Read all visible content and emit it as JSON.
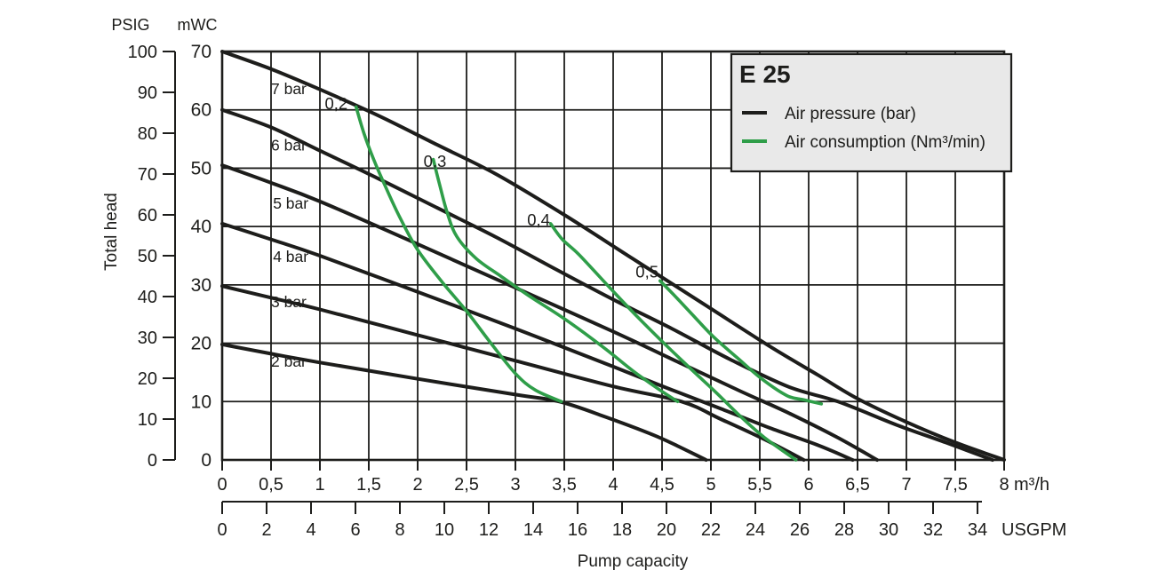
{
  "title": "E 25",
  "colors": {
    "pressure": "#1d1d1b",
    "consumption": "#2f9e49",
    "grid": "#1d1d1b",
    "legend_bg": "#e9e9e9",
    "background": "#ffffff"
  },
  "legend": {
    "title": "E 25",
    "items": [
      {
        "label": "Air pressure (bar)",
        "group": "pressure"
      },
      {
        "label": "Air consumption (Nm³/min)",
        "group": "consumption"
      }
    ]
  },
  "y_axis": {
    "title": "Total head",
    "secondary_unit": "PSIG",
    "primary_unit": "mWC",
    "psig_ticks": [
      "100",
      "90",
      "80",
      "70",
      "60",
      "50",
      "40",
      "30",
      "20",
      "10",
      "0"
    ],
    "mwc_ticks": [
      "70",
      "60",
      "50",
      "40",
      "30",
      "20",
      "10",
      "0"
    ]
  },
  "x_axis": {
    "title": "Pump capacity",
    "primary_unit": "m³/h",
    "secondary_unit": "USGPM",
    "m3h_ticks": [
      "0",
      "0,5",
      "1",
      "1,5",
      "2",
      "2,5",
      "3",
      "3,5",
      "4",
      "4,5",
      "5",
      "5,5",
      "6",
      "6,5",
      "7",
      "7,5",
      "8"
    ],
    "usgpm_ticks": [
      "0",
      "2",
      "4",
      "6",
      "8",
      "10",
      "12",
      "14",
      "16",
      "18",
      "20",
      "22",
      "24",
      "26",
      "28",
      "30",
      "32",
      "34"
    ]
  },
  "chart_data": {
    "type": "line",
    "xlim_m3h": [
      0,
      8
    ],
    "ylim_mwc": [
      0,
      70
    ],
    "ylim_psig": [
      0,
      100
    ],
    "xlim_usgpm": [
      0,
      35.2
    ],
    "grid": true,
    "legend_position": "top-right",
    "series": [
      {
        "id": "pressure-7-bar",
        "group": "pressure",
        "label": "7 bar",
        "label_anchor": {
          "x": 0.5,
          "y": 62.7
        },
        "points": [
          [
            0,
            70
          ],
          [
            0.5,
            67
          ],
          [
            1.0,
            63.5
          ],
          [
            1.6,
            59
          ],
          [
            2.2,
            54
          ],
          [
            2.8,
            49
          ],
          [
            3.5,
            42
          ],
          [
            4.2,
            34.5
          ],
          [
            4.9,
            27
          ],
          [
            5.6,
            19.5
          ],
          [
            6.1,
            14.5
          ],
          [
            6.5,
            10.5
          ],
          [
            7.0,
            6.5
          ],
          [
            7.5,
            3
          ],
          [
            8.0,
            0
          ]
        ]
      },
      {
        "id": "pressure-6-bar",
        "group": "pressure",
        "label": "6 bar",
        "label_anchor": {
          "x": 0.5,
          "y": 53.0
        },
        "points": [
          [
            0,
            60
          ],
          [
            0.5,
            57
          ],
          [
            1.0,
            53
          ],
          [
            1.6,
            48.2
          ],
          [
            2.2,
            43.2
          ],
          [
            2.8,
            38.2
          ],
          [
            3.4,
            32.8
          ],
          [
            4.0,
            27.5
          ],
          [
            4.6,
            22.5
          ],
          [
            5.2,
            17.2
          ],
          [
            5.8,
            12.5
          ],
          [
            6.3,
            10
          ],
          [
            6.9,
            6
          ],
          [
            7.4,
            3
          ],
          [
            7.88,
            0
          ]
        ]
      },
      {
        "id": "pressure-5-bar",
        "group": "pressure",
        "label": "5 bar",
        "label_anchor": {
          "x": 0.52,
          "y": 43.1
        },
        "points": [
          [
            0,
            50.5
          ],
          [
            0.5,
            47.5
          ],
          [
            1.0,
            44.3
          ],
          [
            2.0,
            37
          ],
          [
            3.0,
            29.5
          ],
          [
            4.0,
            22
          ],
          [
            4.7,
            16.5
          ],
          [
            5.3,
            11.8
          ],
          [
            5.8,
            8
          ],
          [
            6.3,
            3.8
          ],
          [
            6.7,
            0
          ]
        ]
      },
      {
        "id": "pressure-4-bar",
        "group": "pressure",
        "label": "4 bar",
        "label_anchor": {
          "x": 0.52,
          "y": 33.9
        },
        "points": [
          [
            0,
            40.5
          ],
          [
            0.5,
            37.8
          ],
          [
            1.0,
            35
          ],
          [
            2.0,
            28.8
          ],
          [
            3.0,
            22.5
          ],
          [
            4.0,
            16
          ],
          [
            4.6,
            12
          ],
          [
            5.1,
            8.8
          ],
          [
            5.6,
            5.5
          ],
          [
            6.1,
            2.5
          ],
          [
            6.45,
            0
          ]
        ]
      },
      {
        "id": "pressure-3-bar",
        "group": "pressure",
        "label": "3 bar",
        "label_anchor": {
          "x": 0.5,
          "y": 26.2
        },
        "points": [
          [
            0,
            29.8
          ],
          [
            0.5,
            27.8
          ],
          [
            1.0,
            25.8
          ],
          [
            2.0,
            21.4
          ],
          [
            3.0,
            17
          ],
          [
            4.0,
            12.6
          ],
          [
            4.7,
            10
          ],
          [
            5.1,
            7
          ],
          [
            5.55,
            3.5
          ],
          [
            5.95,
            0
          ]
        ]
      },
      {
        "id": "pressure-2-bar",
        "group": "pressure",
        "label": "2 bar",
        "label_anchor": {
          "x": 0.5,
          "y": 16.0
        },
        "points": [
          [
            0,
            19.8
          ],
          [
            0.5,
            18.2
          ],
          [
            1.0,
            16.7
          ],
          [
            2.0,
            13.9
          ],
          [
            3.0,
            11.2
          ],
          [
            3.45,
            10
          ],
          [
            3.9,
            7.5
          ],
          [
            4.45,
            4
          ],
          [
            4.95,
            0
          ]
        ]
      },
      {
        "id": "consumption-0-2",
        "group": "consumption",
        "label": "0,2",
        "label_anchor": {
          "x": 1.05,
          "y": 60.1
        },
        "points": [
          [
            1.37,
            60.5
          ],
          [
            1.45,
            56
          ],
          [
            1.55,
            51.5
          ],
          [
            1.68,
            46.5
          ],
          [
            1.82,
            41.5
          ],
          [
            2.0,
            36
          ],
          [
            2.25,
            30.5
          ],
          [
            2.5,
            25.5
          ],
          [
            2.75,
            20
          ],
          [
            3.0,
            14.8
          ],
          [
            3.2,
            12
          ],
          [
            3.47,
            10
          ]
        ]
      },
      {
        "id": "consumption-0-3",
        "group": "consumption",
        "label": "0,3",
        "label_anchor": {
          "x": 2.06,
          "y": 50.2
        },
        "points": [
          [
            2.16,
            51.5
          ],
          [
            2.22,
            47.5
          ],
          [
            2.3,
            42.5
          ],
          [
            2.4,
            38.3
          ],
          [
            2.6,
            34.5
          ],
          [
            2.85,
            31.5
          ],
          [
            3.15,
            28
          ],
          [
            3.5,
            24.2
          ],
          [
            3.9,
            19.3
          ],
          [
            4.2,
            15.3
          ],
          [
            4.45,
            12.3
          ],
          [
            4.66,
            10
          ]
        ]
      },
      {
        "id": "consumption-0-4",
        "group": "consumption",
        "label": "0,4",
        "label_anchor": {
          "x": 3.12,
          "y": 40.2
        },
        "points": [
          [
            3.36,
            40.5
          ],
          [
            3.48,
            37.8
          ],
          [
            3.65,
            35.2
          ],
          [
            3.95,
            29.8
          ],
          [
            4.25,
            24.5
          ],
          [
            4.52,
            20
          ],
          [
            4.8,
            15.5
          ],
          [
            5.05,
            11.6
          ],
          [
            5.3,
            7.5
          ],
          [
            5.55,
            3.8
          ],
          [
            5.87,
            0
          ]
        ]
      },
      {
        "id": "consumption-0-5",
        "group": "consumption",
        "label": "0,5",
        "label_anchor": {
          "x": 4.23,
          "y": 31.3
        },
        "points": [
          [
            4.48,
            30.7
          ],
          [
            4.62,
            28.3
          ],
          [
            4.8,
            25.1
          ],
          [
            5.02,
            21.2
          ],
          [
            5.27,
            17.5
          ],
          [
            5.52,
            13.9
          ],
          [
            5.78,
            11
          ],
          [
            5.95,
            10.3
          ],
          [
            6.13,
            9.6
          ]
        ]
      }
    ]
  }
}
